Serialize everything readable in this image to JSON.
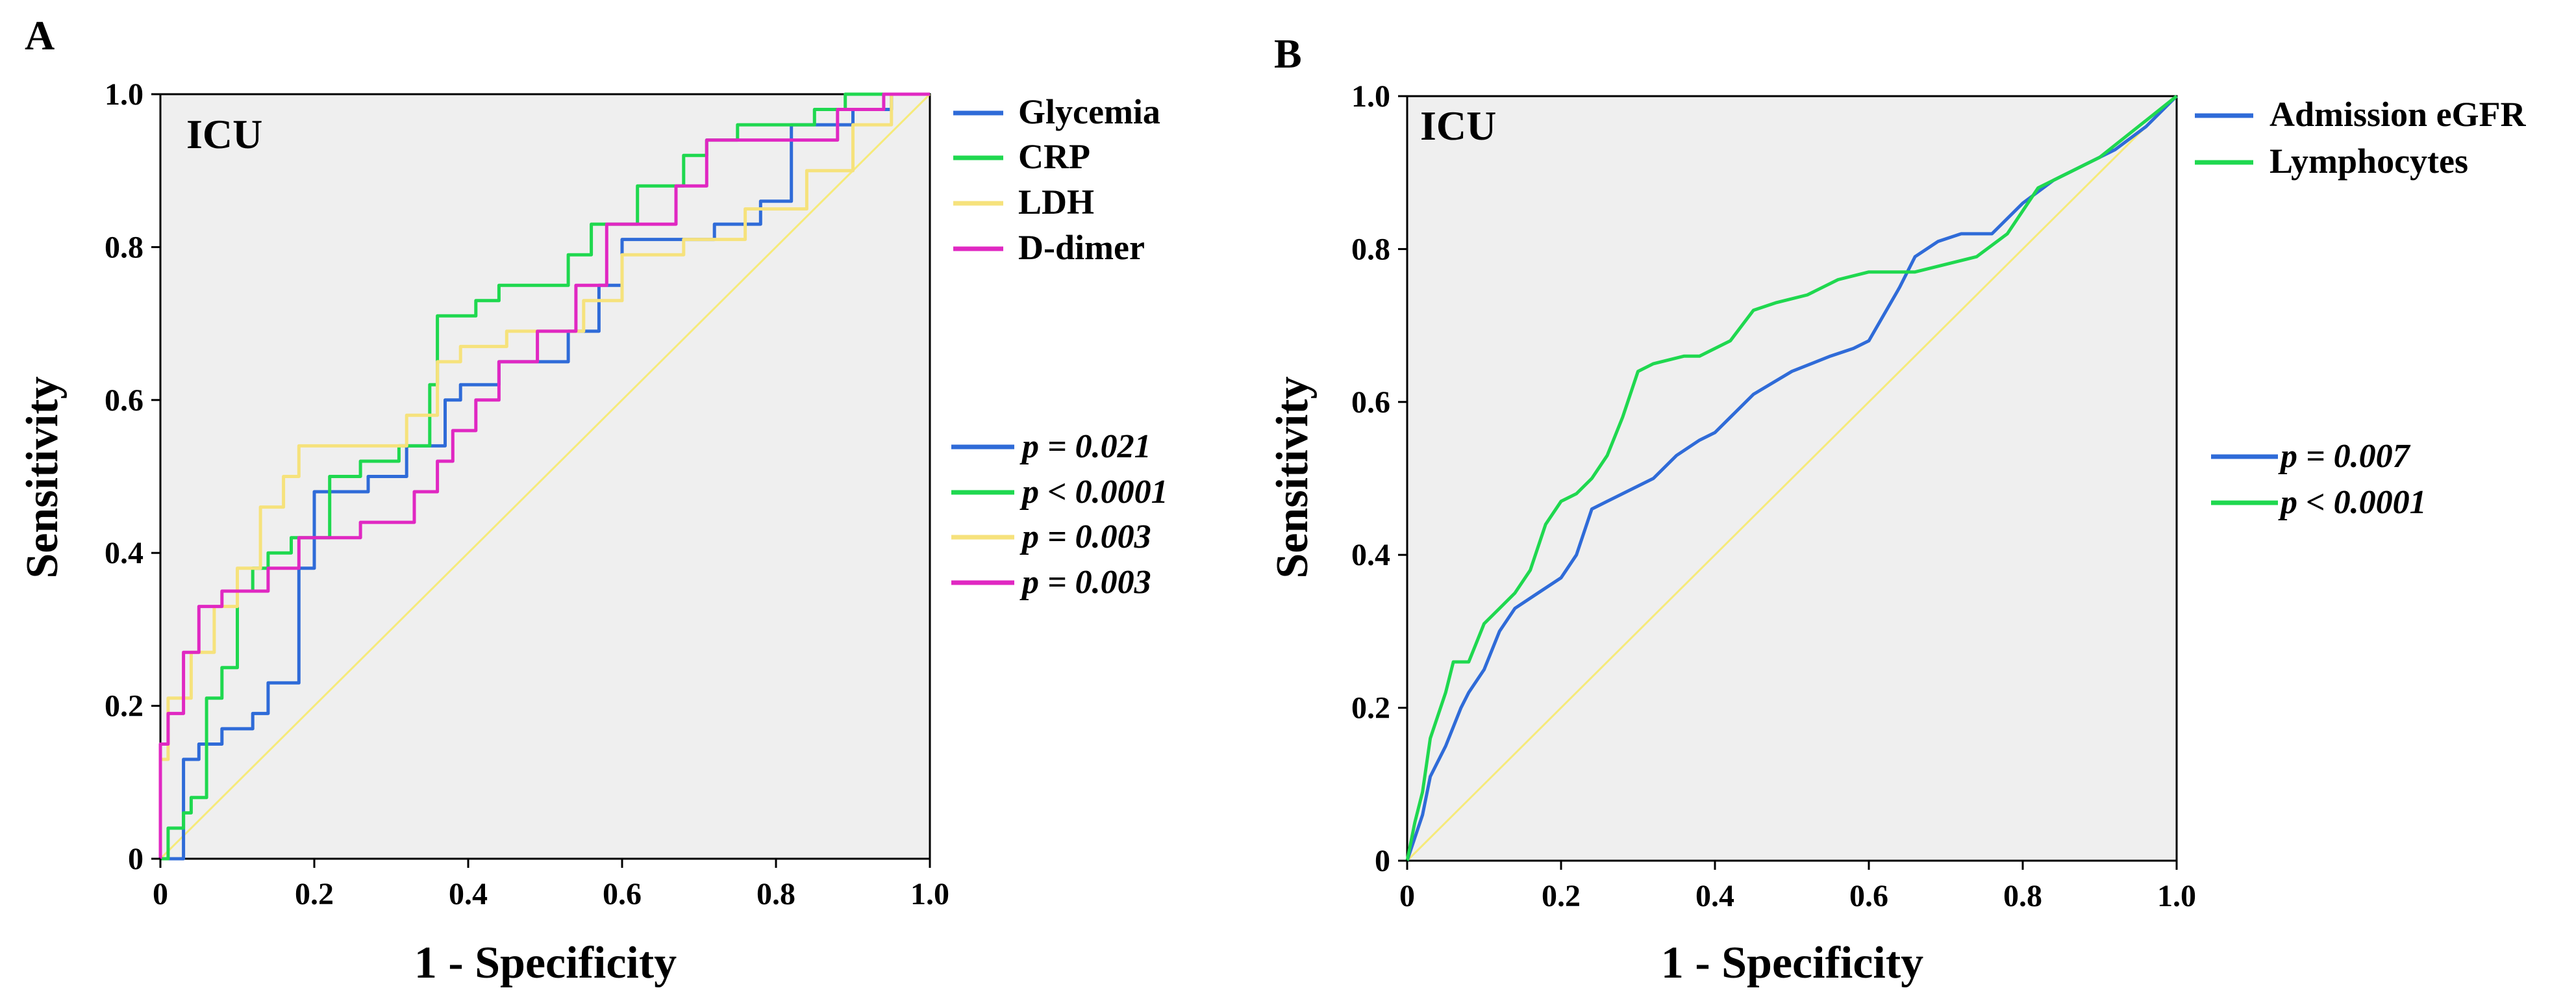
{
  "chart_data": [
    {
      "panel_label": "A",
      "type": "line",
      "subtitle": "ICU",
      "xlabel": "1 - Specificity",
      "ylabel": "Sensitivity",
      "xlim": [
        0,
        1
      ],
      "ylim": [
        0,
        1
      ],
      "xticks": [
        0,
        0.2,
        0.4,
        0.6,
        0.8,
        1.0
      ],
      "xtick_labels": [
        "0",
        "0.2",
        "0.4",
        "0.6",
        "0.8",
        "1.0"
      ],
      "yticks": [
        0,
        0.2,
        0.4,
        0.6,
        0.8,
        1.0
      ],
      "ytick_labels": [
        "0",
        "0.2",
        "0.4",
        "0.6",
        "0.8",
        "1.0"
      ],
      "grid": false,
      "legend_position": "right-top",
      "series": [
        {
          "name": "Glycemia",
          "color": "#2f6bd8",
          "p_value": "p = 0.021",
          "x": [
            0,
            0.03,
            0.03,
            0.05,
            0.05,
            0.08,
            0.08,
            0.12,
            0.12,
            0.14,
            0.14,
            0.18,
            0.18,
            0.2,
            0.2,
            0.27,
            0.27,
            0.32,
            0.32,
            0.37,
            0.37,
            0.39,
            0.39,
            0.44,
            0.44,
            0.53,
            0.53,
            0.57,
            0.57,
            0.6,
            0.6,
            0.65,
            0.65,
            0.72,
            0.72,
            0.78,
            0.78,
            0.82,
            0.82,
            0.9,
            0.9,
            0.95,
            0.95,
            1.0
          ],
          "y": [
            0,
            0,
            0.13,
            0.13,
            0.15,
            0.15,
            0.17,
            0.17,
            0.19,
            0.19,
            0.23,
            0.23,
            0.38,
            0.38,
            0.48,
            0.48,
            0.5,
            0.5,
            0.54,
            0.54,
            0.6,
            0.6,
            0.62,
            0.62,
            0.65,
            0.65,
            0.69,
            0.69,
            0.75,
            0.75,
            0.81,
            0.81,
            0.81,
            0.81,
            0.83,
            0.83,
            0.86,
            0.86,
            0.96,
            0.96,
            0.98,
            0.98,
            1.0,
            1.0
          ]
        },
        {
          "name": "CRP",
          "color": "#1fd84f",
          "p_value": "p < 0.0001",
          "x": [
            0,
            0.01,
            0.01,
            0.03,
            0.03,
            0.04,
            0.04,
            0.06,
            0.06,
            0.08,
            0.08,
            0.1,
            0.1,
            0.12,
            0.12,
            0.14,
            0.14,
            0.17,
            0.17,
            0.22,
            0.22,
            0.26,
            0.26,
            0.31,
            0.31,
            0.35,
            0.35,
            0.36,
            0.36,
            0.41,
            0.41,
            0.44,
            0.44,
            0.53,
            0.53,
            0.56,
            0.56,
            0.62,
            0.62,
            0.68,
            0.68,
            0.71,
            0.71,
            0.75,
            0.75,
            0.85,
            0.85,
            0.89,
            0.89,
            0.95,
            0.95,
            1.0
          ],
          "y": [
            0,
            0,
            0.04,
            0.04,
            0.06,
            0.06,
            0.08,
            0.08,
            0.21,
            0.21,
            0.25,
            0.25,
            0.35,
            0.35,
            0.38,
            0.38,
            0.4,
            0.4,
            0.42,
            0.42,
            0.5,
            0.5,
            0.52,
            0.52,
            0.54,
            0.54,
            0.62,
            0.62,
            0.71,
            0.71,
            0.73,
            0.73,
            0.75,
            0.75,
            0.79,
            0.79,
            0.83,
            0.83,
            0.88,
            0.88,
            0.92,
            0.92,
            0.94,
            0.94,
            0.96,
            0.96,
            0.98,
            0.98,
            1.0,
            1.0,
            1.0,
            1.0
          ]
        },
        {
          "name": "LDH",
          "color": "#f6e27c",
          "p_value": "p = 0.003",
          "x": [
            0,
            0.0,
            0.01,
            0.01,
            0.04,
            0.04,
            0.07,
            0.07,
            0.1,
            0.1,
            0.13,
            0.13,
            0.16,
            0.16,
            0.18,
            0.18,
            0.26,
            0.26,
            0.32,
            0.32,
            0.36,
            0.36,
            0.39,
            0.39,
            0.45,
            0.45,
            0.55,
            0.55,
            0.6,
            0.6,
            0.68,
            0.68,
            0.76,
            0.76,
            0.84,
            0.84,
            0.9,
            0.9,
            0.95,
            0.95,
            1.0
          ],
          "y": [
            0,
            0.13,
            0.13,
            0.21,
            0.21,
            0.27,
            0.27,
            0.33,
            0.33,
            0.38,
            0.38,
            0.46,
            0.46,
            0.5,
            0.5,
            0.54,
            0.54,
            0.54,
            0.54,
            0.58,
            0.58,
            0.65,
            0.65,
            0.67,
            0.67,
            0.69,
            0.69,
            0.73,
            0.73,
            0.79,
            0.79,
            0.81,
            0.81,
            0.85,
            0.85,
            0.9,
            0.9,
            0.96,
            0.96,
            1.0,
            1.0
          ]
        },
        {
          "name": "D-dimer",
          "color": "#e028c2",
          "p_value": "p = 0.003",
          "x": [
            0,
            0.0,
            0.01,
            0.01,
            0.03,
            0.03,
            0.05,
            0.05,
            0.08,
            0.08,
            0.14,
            0.14,
            0.18,
            0.18,
            0.26,
            0.26,
            0.33,
            0.33,
            0.36,
            0.36,
            0.38,
            0.38,
            0.41,
            0.41,
            0.44,
            0.44,
            0.49,
            0.49,
            0.54,
            0.54,
            0.58,
            0.58,
            0.67,
            0.67,
            0.71,
            0.71,
            0.79,
            0.79,
            0.88,
            0.88,
            0.94,
            0.94,
            1.0
          ],
          "y": [
            0,
            0.15,
            0.15,
            0.19,
            0.19,
            0.27,
            0.27,
            0.33,
            0.33,
            0.35,
            0.35,
            0.38,
            0.38,
            0.42,
            0.42,
            0.44,
            0.44,
            0.48,
            0.48,
            0.52,
            0.52,
            0.56,
            0.56,
            0.6,
            0.6,
            0.65,
            0.65,
            0.69,
            0.69,
            0.75,
            0.75,
            0.83,
            0.83,
            0.88,
            0.88,
            0.94,
            0.94,
            0.94,
            0.94,
            0.98,
            0.98,
            1.0,
            1.0
          ]
        },
        {
          "name": "Reference",
          "color": "#f6ea7a",
          "x": [
            0,
            1
          ],
          "y": [
            0,
            1
          ]
        }
      ]
    },
    {
      "panel_label": "B",
      "type": "line",
      "subtitle": "ICU",
      "xlabel": "1 - Specificity",
      "ylabel": "Sensitivity",
      "xlim": [
        0,
        1
      ],
      "ylim": [
        0,
        1
      ],
      "xticks": [
        0,
        0.2,
        0.4,
        0.6,
        0.8,
        1.0
      ],
      "xtick_labels": [
        "0",
        "0.2",
        "0.4",
        "0.6",
        "0.8",
        "1.0"
      ],
      "yticks": [
        0,
        0.2,
        0.4,
        0.6,
        0.8,
        1.0
      ],
      "ytick_labels": [
        "0",
        "0.2",
        "0.4",
        "0.6",
        "0.8",
        "1.0"
      ],
      "grid": false,
      "legend_position": "right-top",
      "series": [
        {
          "name": "Admission eGFR",
          "color": "#2f6bd8",
          "p_value": "p = 0.007",
          "x": [
            0,
            0.01,
            0.02,
            0.03,
            0.05,
            0.07,
            0.08,
            0.1,
            0.12,
            0.14,
            0.17,
            0.2,
            0.22,
            0.24,
            0.26,
            0.28,
            0.32,
            0.35,
            0.38,
            0.4,
            0.45,
            0.5,
            0.55,
            0.58,
            0.6,
            0.64,
            0.66,
            0.69,
            0.72,
            0.76,
            0.8,
            0.84,
            0.88,
            0.92,
            0.96,
            1.0
          ],
          "y": [
            0,
            0.03,
            0.06,
            0.11,
            0.15,
            0.2,
            0.22,
            0.25,
            0.3,
            0.33,
            0.35,
            0.37,
            0.4,
            0.46,
            0.47,
            0.48,
            0.5,
            0.53,
            0.55,
            0.56,
            0.61,
            0.64,
            0.66,
            0.67,
            0.68,
            0.75,
            0.79,
            0.81,
            0.82,
            0.82,
            0.86,
            0.89,
            0.91,
            0.93,
            0.96,
            1.0
          ]
        },
        {
          "name": "Lymphocytes",
          "color": "#1fd84f",
          "p_value": "p < 0.0001",
          "x": [
            0,
            0.01,
            0.02,
            0.03,
            0.05,
            0.06,
            0.08,
            0.1,
            0.12,
            0.14,
            0.16,
            0.18,
            0.2,
            0.22,
            0.24,
            0.26,
            0.28,
            0.3,
            0.32,
            0.36,
            0.38,
            0.42,
            0.45,
            0.48,
            0.52,
            0.56,
            0.6,
            0.66,
            0.7,
            0.74,
            0.78,
            0.82,
            0.86,
            0.9,
            0.95,
            1.0
          ],
          "y": [
            0,
            0.05,
            0.09,
            0.16,
            0.22,
            0.26,
            0.26,
            0.31,
            0.33,
            0.35,
            0.38,
            0.44,
            0.47,
            0.48,
            0.5,
            0.53,
            0.58,
            0.64,
            0.65,
            0.66,
            0.66,
            0.68,
            0.72,
            0.73,
            0.74,
            0.76,
            0.77,
            0.77,
            0.78,
            0.79,
            0.82,
            0.88,
            0.9,
            0.92,
            0.96,
            1.0
          ]
        },
        {
          "name": "Reference",
          "color": "#f6ea7a",
          "x": [
            0,
            1
          ],
          "y": [
            0,
            1
          ]
        }
      ]
    }
  ]
}
